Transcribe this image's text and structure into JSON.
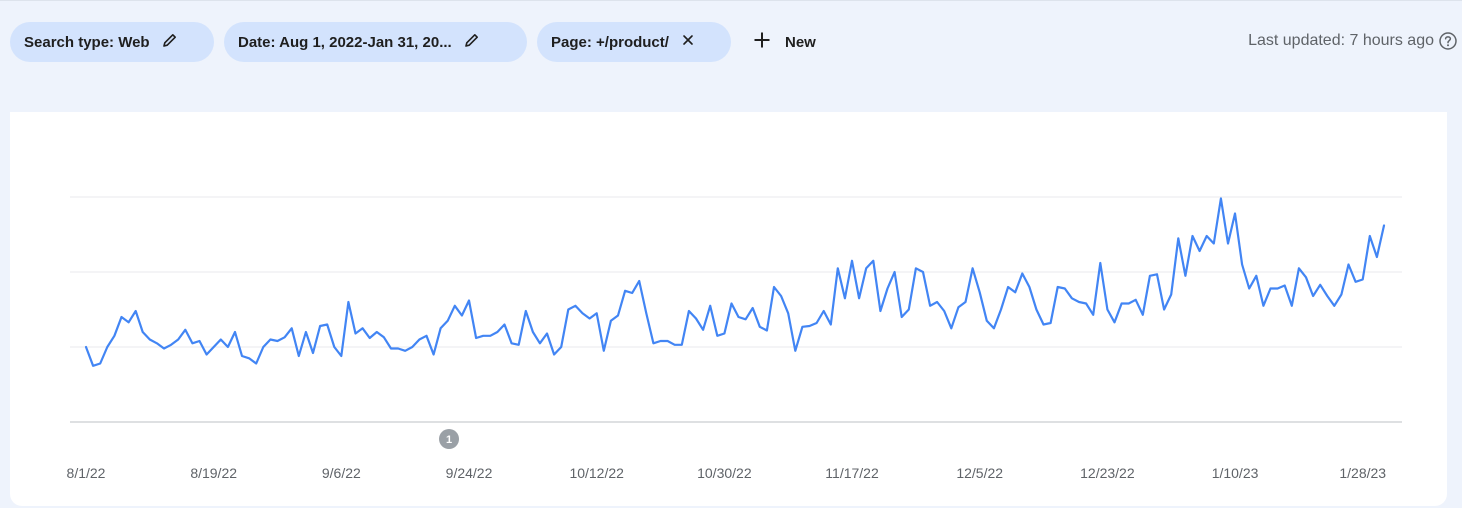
{
  "filters": {
    "chips": [
      {
        "label": "Search type: Web",
        "icon": "pencil-icon"
      },
      {
        "label": "Date: Aug 1, 2022-Jan 31, 20...",
        "icon": "pencil-icon"
      },
      {
        "label": "Page: +/product/",
        "icon": "close-icon"
      }
    ],
    "new_label": "New"
  },
  "status": {
    "last_updated": "Last updated: 7 hours ago"
  },
  "colors": {
    "line": "#4285f4",
    "chip_bg": "#d3e3fd",
    "annotation": "#9aa0a6"
  },
  "chart_data": {
    "type": "line",
    "x_start": "2022-08-01",
    "x_tick_labels": [
      "8/1/22",
      "8/19/22",
      "9/6/22",
      "9/24/22",
      "10/12/22",
      "10/30/22",
      "11/17/22",
      "12/5/22",
      "12/23/22",
      "1/10/23",
      "1/28/23"
    ],
    "y_tick_labels": [],
    "grid": true,
    "annotation": {
      "label": "1",
      "date": "9/24/22"
    },
    "series": [
      {
        "values": [
          1.0,
          0.75,
          0.78,
          1.0,
          1.15,
          1.4,
          1.33,
          1.48,
          1.2,
          1.1,
          1.05,
          0.98,
          1.03,
          1.1,
          1.23,
          1.05,
          1.08,
          0.9,
          1.0,
          1.1,
          1.0,
          1.2,
          0.88,
          0.85,
          0.78,
          1.0,
          1.1,
          1.08,
          1.13,
          1.25,
          0.88,
          1.2,
          0.92,
          1.28,
          1.3,
          1.0,
          0.88,
          1.6,
          1.18,
          1.25,
          1.12,
          1.2,
          1.13,
          0.98,
          0.98,
          0.95,
          1.0,
          1.1,
          1.15,
          0.9,
          1.25,
          1.35,
          1.55,
          1.42,
          1.62,
          1.12,
          1.15,
          1.15,
          1.2,
          1.3,
          1.05,
          1.03,
          1.48,
          1.2,
          1.05,
          1.18,
          0.9,
          1.0,
          1.5,
          1.55,
          1.45,
          1.38,
          1.45,
          0.95,
          1.35,
          1.42,
          1.75,
          1.72,
          1.88,
          1.45,
          1.05,
          1.08,
          1.08,
          1.03,
          1.03,
          1.48,
          1.38,
          1.23,
          1.55,
          1.15,
          1.18,
          1.58,
          1.4,
          1.37,
          1.52,
          1.27,
          1.22,
          1.8,
          1.68,
          1.45,
          0.95,
          1.27,
          1.28,
          1.32,
          1.48,
          1.3,
          2.05,
          1.65,
          2.15,
          1.65,
          2.05,
          2.15,
          1.48,
          1.78,
          2.0,
          1.4,
          1.5,
          2.05,
          2.0,
          1.55,
          1.6,
          1.48,
          1.25,
          1.53,
          1.6,
          2.05,
          1.73,
          1.35,
          1.25,
          1.5,
          1.8,
          1.73,
          1.98,
          1.8,
          1.5,
          1.3,
          1.32,
          1.8,
          1.78,
          1.65,
          1.6,
          1.58,
          1.43,
          2.12,
          1.5,
          1.33,
          1.58,
          1.58,
          1.63,
          1.43,
          1.95,
          1.97,
          1.5,
          1.7,
          2.45,
          1.95,
          2.48,
          2.28,
          2.48,
          2.38,
          2.98,
          2.38,
          2.78,
          2.1,
          1.78,
          1.95,
          1.55,
          1.78,
          1.78,
          1.82,
          1.55,
          2.05,
          1.93,
          1.68,
          1.83,
          1.68,
          1.55,
          1.7,
          2.1,
          1.87,
          1.9,
          2.48,
          2.2,
          2.62
        ]
      }
    ]
  }
}
